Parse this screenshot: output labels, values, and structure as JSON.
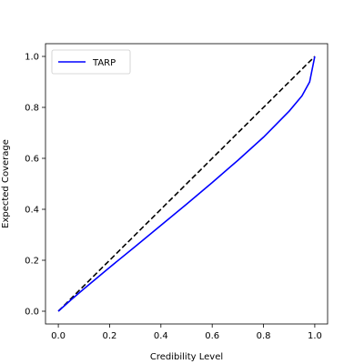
{
  "chart_data": {
    "type": "line",
    "title": "",
    "xlabel": "Credibility Level",
    "ylabel": "Expected Coverage",
    "xlim": [
      -0.05,
      1.05
    ],
    "ylim": [
      -0.05,
      1.05
    ],
    "xticks": [
      0.0,
      0.2,
      0.4,
      0.6,
      0.8,
      1.0
    ],
    "yticks": [
      0.0,
      0.2,
      0.4,
      0.6,
      0.8,
      1.0
    ],
    "xtick_labels": [
      "0.0",
      "0.2",
      "0.4",
      "0.6",
      "0.8",
      "1.0"
    ],
    "ytick_labels": [
      "0.0",
      "0.2",
      "0.4",
      "0.6",
      "0.8",
      "1.0"
    ],
    "grid": false,
    "legend_position": "top-left",
    "series": [
      {
        "name": "TARP",
        "color": "#0000ff",
        "style": "solid",
        "x": [
          0.0,
          0.05,
          0.1,
          0.15,
          0.2,
          0.3,
          0.4,
          0.5,
          0.6,
          0.7,
          0.8,
          0.9,
          0.95,
          0.98,
          1.0
        ],
        "y": [
          0.0,
          0.045,
          0.088,
          0.13,
          0.172,
          0.254,
          0.337,
          0.42,
          0.505,
          0.592,
          0.683,
          0.785,
          0.845,
          0.9,
          1.0
        ]
      },
      {
        "name": "",
        "color": "#000000",
        "style": "dashed",
        "x": [
          0.0,
          1.0
        ],
        "y": [
          0.0,
          1.0
        ]
      }
    ]
  }
}
